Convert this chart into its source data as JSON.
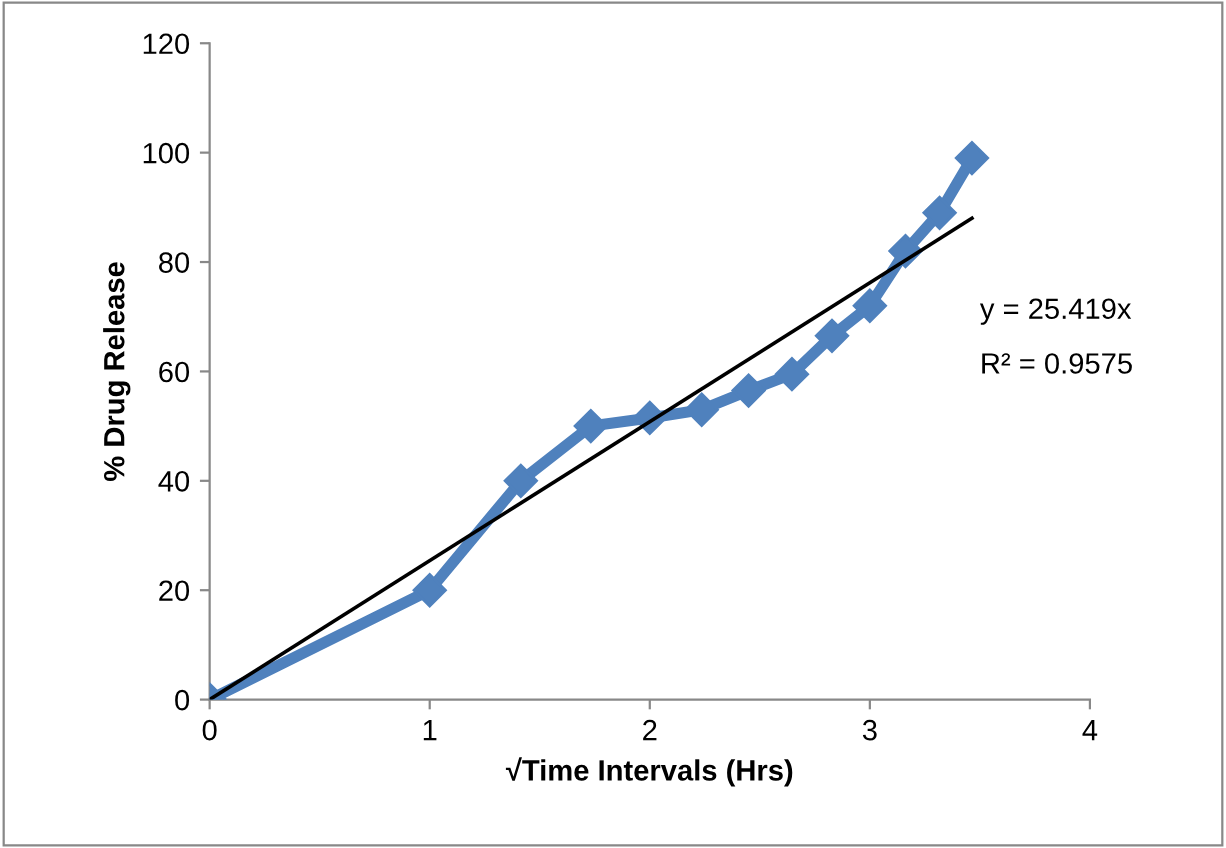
{
  "chart_data": {
    "type": "line",
    "xlabel": "√Time Intervals (Hrs)",
    "ylabel": "% Drug Release",
    "xlim": [
      0,
      4
    ],
    "xticks": [
      0,
      1,
      2,
      3,
      4
    ],
    "ylim": [
      0,
      120
    ],
    "yticks": [
      0,
      20,
      40,
      60,
      80,
      100,
      120
    ],
    "grid": false,
    "legend": false,
    "series": [
      {
        "color": "#4f81bd",
        "marker": "diamond",
        "line_style": "solid",
        "x": [
          0,
          1,
          1.414,
          1.732,
          2,
          2.236,
          2.449,
          2.646,
          2.828,
          3,
          3.162,
          3.317,
          3.464
        ],
        "values": [
          0,
          20,
          40,
          50,
          51.5,
          53,
          56.5,
          59.5,
          66.5,
          72,
          82,
          89,
          99
        ]
      },
      {
        "color": "#000000",
        "marker": "none",
        "line_style": "solid",
        "x": [
          0,
          3.464
        ],
        "values": [
          0,
          88
        ]
      }
    ],
    "annotations": [
      "y = 25.419x",
      "R² = 0.9575"
    ]
  }
}
